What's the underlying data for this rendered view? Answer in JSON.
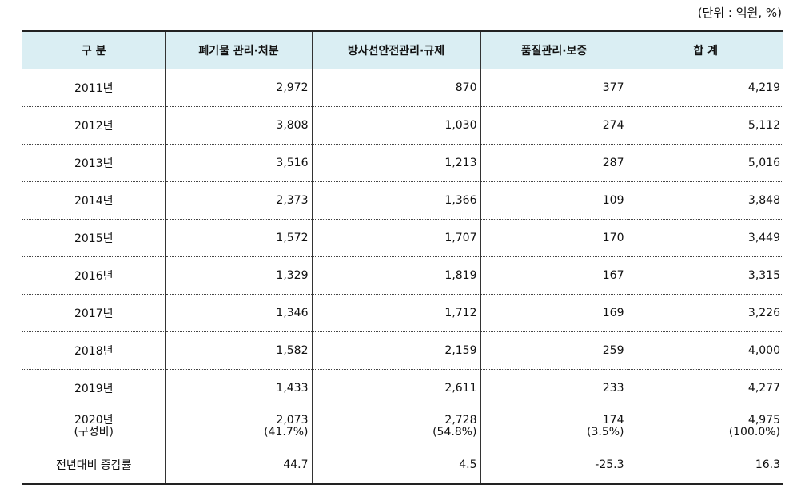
{
  "unit": "(단위 : 억원, %)",
  "table": {
    "header": [
      "구 분",
      "폐기물 관리·처분",
      "방사선안전관리·규제",
      "품질관리·보증",
      "합 계"
    ],
    "rows": [
      [
        "2011년",
        "2,972",
        "870",
        "377",
        "4,219"
      ],
      [
        "2012년",
        "3,808",
        "1,030",
        "274",
        "5,112"
      ],
      [
        "2013년",
        "3,516",
        "1,213",
        "287",
        "5,016"
      ],
      [
        "2014년",
        "2,373",
        "1,366",
        "109",
        "3,848"
      ],
      [
        "2015년",
        "1,572",
        "1,707",
        "170",
        "3,449"
      ],
      [
        "2016년",
        "1,329",
        "1,819",
        "167",
        "3,315"
      ],
      [
        "2017년",
        "1,346",
        "1,712",
        "169",
        "3,226"
      ],
      [
        "2018년",
        "1,582",
        "2,159",
        "259",
        "4,000"
      ],
      [
        "2019년",
        "1,433",
        "2,611",
        "233",
        "4,277"
      ],
      [
        [
          "2020년",
          "(구성비)"
        ],
        [
          "2,073",
          "(41.7%)"
        ],
        [
          "2,728",
          "(54.8%)"
        ],
        [
          "174",
          "(3.5%)"
        ],
        [
          "4,975",
          "(100.0%)"
        ]
      ],
      [
        "전년대비 증감률",
        "44.7",
        "4.5",
        "-25.3",
        "16.3"
      ]
    ]
  }
}
